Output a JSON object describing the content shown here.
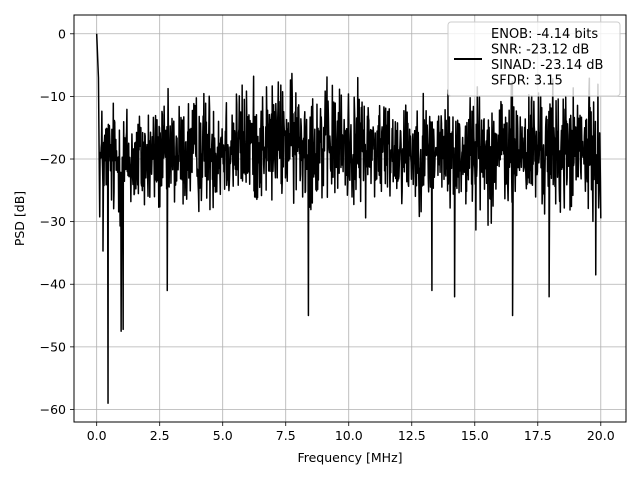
{
  "chart_data": {
    "type": "line",
    "xlabel": "Frequency [MHz]",
    "ylabel": "PSD [dB]",
    "xlim": [
      -0.9,
      21.0
    ],
    "ylim": [
      -62.0,
      3.0
    ],
    "xticks": [
      0.0,
      2.5,
      5.0,
      7.5,
      10.0,
      12.5,
      15.0,
      17.5,
      20.0
    ],
    "xtick_labels": [
      "0.0",
      "2.5",
      "5.0",
      "7.5",
      "10.0",
      "12.5",
      "15.0",
      "17.5",
      "20.0"
    ],
    "yticks": [
      0,
      -10,
      -20,
      -30,
      -40,
      -50,
      -60
    ],
    "ytick_labels": [
      "0",
      "−10",
      "−20",
      "−30",
      "−40",
      "−50",
      "−60"
    ],
    "grid": true,
    "legend_position": "top-right",
    "legend_lines": [
      "ENOB: -4.14 bits",
      "SNR: -23.12 dB",
      "SINAD: -23.14 dB",
      "SFDR: 3.15"
    ],
    "series_color": "#000000",
    "noise_band": {
      "x_range": [
        0.0,
        20.0
      ],
      "upper_envelope": {
        "x": [
          0.0,
          2.5,
          5.0,
          7.5,
          10.0,
          12.5,
          15.0,
          17.5,
          20.0
        ],
        "y": [
          -10,
          -11,
          -8,
          -7,
          -8,
          -10,
          -9,
          -8,
          -9
        ]
      },
      "lower_envelope": {
        "x": [
          0.0,
          2.5,
          5.0,
          7.5,
          10.0,
          12.5,
          15.0,
          17.5,
          20.0
        ],
        "y": [
          -35,
          -33,
          -32,
          -31,
          -32,
          -31,
          -33,
          -33,
          -33
        ]
      }
    },
    "peaks": [
      {
        "x": 0.0,
        "y": 0.0
      },
      {
        "x": 0.07,
        "y": -7.0
      },
      {
        "x": 0.25,
        "y": -34.7
      }
    ],
    "dips": [
      {
        "x": 0.45,
        "y": -59.0
      },
      {
        "x": 0.97,
        "y": -47.5
      },
      {
        "x": 1.05,
        "y": -47.2
      },
      {
        "x": 2.8,
        "y": -41.0
      },
      {
        "x": 8.4,
        "y": -45.0
      },
      {
        "x": 13.3,
        "y": -41.0
      },
      {
        "x": 14.2,
        "y": -42.0
      },
      {
        "x": 16.5,
        "y": -45.0
      },
      {
        "x": 17.95,
        "y": -42.0
      },
      {
        "x": 19.8,
        "y": -38.5
      }
    ]
  }
}
